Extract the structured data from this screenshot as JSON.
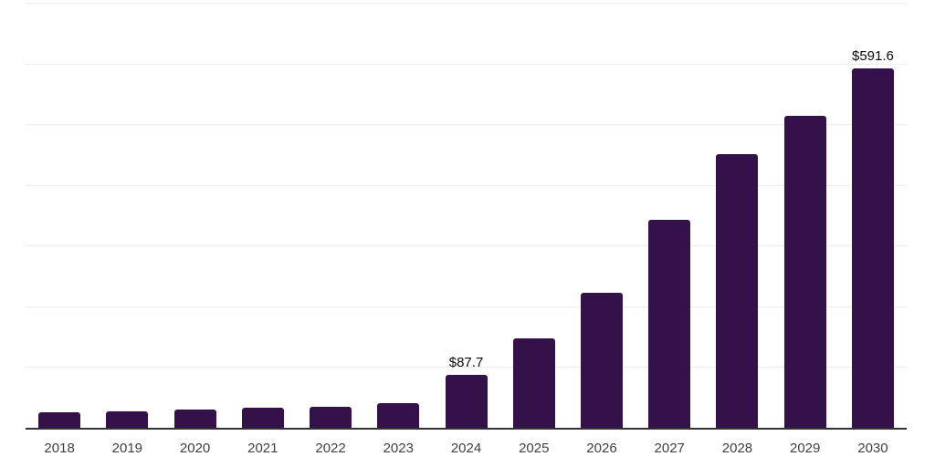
{
  "chart_data": {
    "type": "bar",
    "title": "",
    "xlabel": "",
    "ylabel": "",
    "categories": [
      "2018",
      "2019",
      "2020",
      "2021",
      "2022",
      "2023",
      "2024",
      "2025",
      "2026",
      "2027",
      "2028",
      "2029",
      "2030"
    ],
    "values": [
      25,
      27,
      30,
      33,
      35,
      41,
      87.7,
      147,
      223,
      343,
      450,
      514,
      591.6
    ],
    "value_labels": {
      "2024": "$87.7",
      "2030": "$591.6"
    },
    "ylim": [
      0,
      700
    ],
    "gridline_step": 100,
    "grid": true,
    "y_tick_labels_visible": false,
    "legend": "none",
    "colors": {
      "bar": "#35114A",
      "gridline": "#EDEDF1",
      "axis_line": "#333333",
      "tick_label": "#3F3F3F",
      "value_label": "#0A0A0A",
      "background": "#FFFFFF"
    }
  }
}
